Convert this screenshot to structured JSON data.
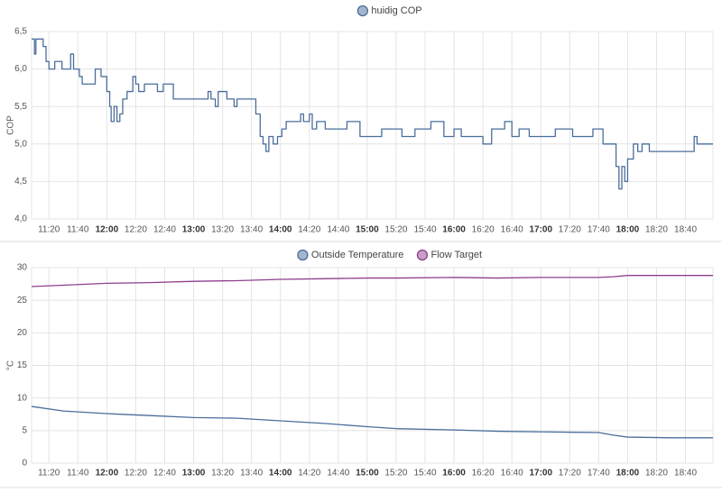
{
  "chart_data": [
    {
      "type": "line",
      "step": true,
      "y_label": "COP",
      "grid": true,
      "legend": "top",
      "xlim": [
        "11:08",
        "18:59"
      ],
      "xticks": [
        "11:20",
        "11:40",
        "12:00",
        "12:20",
        "12:40",
        "13:00",
        "13:20",
        "13:40",
        "14:00",
        "14:20",
        "14:40",
        "15:00",
        "15:20",
        "15:40",
        "16:00",
        "16:20",
        "16:40",
        "17:00",
        "17:20",
        "17:40",
        "18:00",
        "18:20",
        "18:40"
      ],
      "ylim": [
        4.0,
        6.5
      ],
      "yticks": [
        {
          "value": 4.0,
          "label": "4,0"
        },
        {
          "value": 4.5,
          "label": "4,5"
        },
        {
          "value": 5.0,
          "label": "5,0"
        },
        {
          "value": 5.5,
          "label": "5,5"
        },
        {
          "value": 6.0,
          "label": "6,0"
        },
        {
          "value": 6.5,
          "label": "6,5"
        }
      ],
      "x": [
        "11:08",
        "11:10",
        "11:11",
        "11:16",
        "11:18",
        "11:20",
        "11:24",
        "11:29",
        "11:35",
        "11:37",
        "11:41",
        "11:43",
        "11:52",
        "11:56",
        "12:00",
        "12:02",
        "12:03",
        "12:05",
        "12:07",
        "12:09",
        "12:11",
        "12:14",
        "12:18",
        "12:20",
        "12:22",
        "12:26",
        "12:35",
        "12:39",
        "12:46",
        "13:10",
        "13:12",
        "13:15",
        "13:17",
        "13:23",
        "13:28",
        "13:30",
        "13:43",
        "13:46",
        "13:48",
        "13:50",
        "13:52",
        "13:55",
        "13:58",
        "14:01",
        "14:04",
        "14:14",
        "14:16",
        "14:20",
        "14:22",
        "14:25",
        "14:31",
        "14:46",
        "14:55",
        "15:10",
        "15:24",
        "15:33",
        "15:44",
        "15:53",
        "16:00",
        "16:05",
        "16:20",
        "16:26",
        "16:35",
        "16:40",
        "16:45",
        "16:52",
        "17:10",
        "17:22",
        "17:36",
        "17:43",
        "17:52",
        "17:54",
        "17:56",
        "17:58",
        "18:00",
        "18:04",
        "18:07",
        "18:10",
        "18:15",
        "18:46",
        "18:48"
      ],
      "series": [
        {
          "name": "huidig COP",
          "color": "#4a6e9c",
          "values": [
            6.4,
            6.2,
            6.4,
            6.3,
            6.1,
            6.0,
            6.1,
            6.0,
            6.2,
            6.0,
            5.9,
            5.8,
            6.0,
            5.9,
            5.7,
            5.5,
            5.3,
            5.5,
            5.3,
            5.4,
            5.6,
            5.7,
            5.9,
            5.8,
            5.7,
            5.8,
            5.7,
            5.8,
            5.6,
            5.7,
            5.6,
            5.5,
            5.7,
            5.6,
            5.5,
            5.6,
            5.4,
            5.1,
            5.0,
            4.9,
            5.1,
            5.0,
            5.1,
            5.2,
            5.3,
            5.4,
            5.3,
            5.4,
            5.2,
            5.3,
            5.2,
            5.3,
            5.1,
            5.2,
            5.1,
            5.2,
            5.3,
            5.1,
            5.2,
            5.1,
            5.0,
            5.2,
            5.3,
            5.1,
            5.2,
            5.1,
            5.2,
            5.1,
            5.2,
            5.0,
            4.7,
            4.4,
            4.7,
            4.5,
            4.8,
            5.0,
            4.9,
            5.0,
            4.9,
            5.1,
            5.0
          ]
        }
      ]
    },
    {
      "type": "line",
      "step": false,
      "y_label": "°C",
      "grid": true,
      "legend": "top",
      "xlim": [
        "11:08",
        "18:59"
      ],
      "xticks": [
        "11:20",
        "11:40",
        "12:00",
        "12:20",
        "12:40",
        "13:00",
        "13:20",
        "13:40",
        "14:00",
        "14:20",
        "14:40",
        "15:00",
        "15:20",
        "15:40",
        "16:00",
        "16:20",
        "16:40",
        "17:00",
        "17:20",
        "17:40",
        "18:00",
        "18:20",
        "18:40"
      ],
      "ylim": [
        0,
        30
      ],
      "yticks": [
        0,
        5,
        10,
        15,
        20,
        25,
        30
      ],
      "x": [
        "11:08",
        "11:30",
        "12:00",
        "12:30",
        "13:00",
        "13:30",
        "14:00",
        "14:30",
        "15:00",
        "15:20",
        "16:00",
        "16:30",
        "17:00",
        "17:40",
        "17:50",
        "18:00",
        "18:30",
        "18:59"
      ],
      "series": [
        {
          "name": "Outside Temperature",
          "color": "#4a6e9c",
          "values": [
            8.7,
            8.0,
            7.6,
            7.3,
            7.0,
            6.9,
            6.5,
            6.1,
            5.6,
            5.3,
            5.1,
            4.9,
            4.8,
            4.7,
            4.3,
            4.0,
            3.9,
            3.9
          ]
        },
        {
          "name": "Flow Target",
          "color": "#8e3f8e",
          "values": [
            27.1,
            27.3,
            27.6,
            27.7,
            27.9,
            28.0,
            28.2,
            28.3,
            28.4,
            28.4,
            28.5,
            28.4,
            28.5,
            28.5,
            28.6,
            28.8,
            28.8,
            28.8
          ]
        }
      ]
    }
  ]
}
